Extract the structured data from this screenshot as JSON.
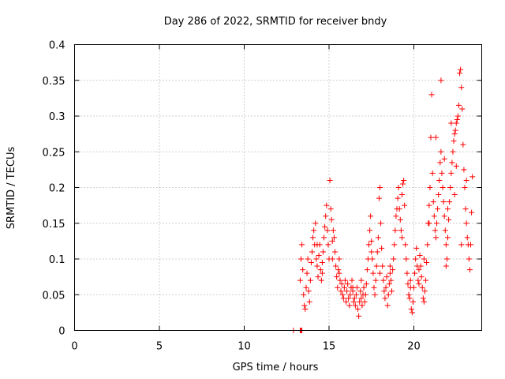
{
  "chart_data": {
    "type": "scatter",
    "title": "Day 286 of 2022, SRMTID for receiver bndy",
    "xlabel": "GPS time / hours",
    "ylabel": "SRMTID / TECUs",
    "xlim": [
      0,
      24
    ],
    "ylim": [
      0,
      0.4
    ],
    "xticks": [
      0,
      5,
      10,
      15,
      20
    ],
    "yticks": [
      0,
      0.05,
      0.1,
      0.15,
      0.2,
      0.25,
      0.3,
      0.35,
      0.4
    ],
    "xtick_labels": [
      "0",
      "5",
      "10",
      "15",
      "20"
    ],
    "ytick_labels": [
      "0",
      "0.05",
      "0.1",
      "0.15",
      "0.2",
      "0.25",
      "0.3",
      "0.35",
      "0.4"
    ],
    "grid": true,
    "marker": "+",
    "color": "#ff0000",
    "series": [
      {
        "name": "SRMTID",
        "points": [
          [
            12.9,
            0.0
          ],
          [
            13.3,
            0.0
          ],
          [
            13.35,
            0.0
          ],
          [
            13.4,
            0.0
          ],
          [
            13.3,
            0.07
          ],
          [
            13.35,
            0.1
          ],
          [
            13.4,
            0.12
          ],
          [
            13.45,
            0.085
          ],
          [
            13.5,
            0.05
          ],
          [
            13.55,
            0.035
          ],
          [
            13.6,
            0.03
          ],
          [
            13.65,
            0.06
          ],
          [
            13.7,
            0.08
          ],
          [
            13.75,
            0.1
          ],
          [
            13.8,
            0.055
          ],
          [
            13.85,
            0.04
          ],
          [
            13.9,
            0.07
          ],
          [
            13.95,
            0.095
          ],
          [
            14.0,
            0.11
          ],
          [
            14.05,
            0.13
          ],
          [
            14.1,
            0.14
          ],
          [
            14.15,
            0.12
          ],
          [
            14.2,
            0.15
          ],
          [
            14.25,
            0.1
          ],
          [
            14.3,
            0.09
          ],
          [
            14.35,
            0.075
          ],
          [
            14.4,
            0.105
          ],
          [
            14.45,
            0.12
          ],
          [
            14.5,
            0.085
          ],
          [
            14.55,
            0.07
          ],
          [
            14.6,
            0.095
          ],
          [
            14.65,
            0.11
          ],
          [
            14.7,
            0.13
          ],
          [
            14.75,
            0.145
          ],
          [
            14.8,
            0.16
          ],
          [
            14.85,
            0.175
          ],
          [
            14.9,
            0.14
          ],
          [
            14.95,
            0.12
          ],
          [
            15.0,
            0.1
          ],
          [
            15.05,
            0.21
          ],
          [
            15.1,
            0.17
          ],
          [
            15.15,
            0.155
          ],
          [
            15.2,
            0.125
          ],
          [
            15.25,
            0.14
          ],
          [
            15.3,
            0.13
          ],
          [
            15.35,
            0.11
          ],
          [
            15.4,
            0.09
          ],
          [
            15.45,
            0.075
          ],
          [
            15.5,
            0.06
          ],
          [
            15.55,
            0.085
          ],
          [
            15.6,
            0.1
          ],
          [
            15.65,
            0.07
          ],
          [
            15.7,
            0.055
          ],
          [
            15.75,
            0.065
          ],
          [
            15.8,
            0.05
          ],
          [
            15.85,
            0.045
          ],
          [
            15.9,
            0.06
          ],
          [
            15.95,
            0.07
          ],
          [
            16.0,
            0.04
          ],
          [
            16.05,
            0.055
          ],
          [
            16.1,
            0.065
          ],
          [
            16.15,
            0.045
          ],
          [
            16.2,
            0.035
          ],
          [
            16.25,
            0.05
          ],
          [
            16.3,
            0.06
          ],
          [
            16.35,
            0.07
          ],
          [
            16.4,
            0.055
          ],
          [
            16.45,
            0.04
          ],
          [
            16.5,
            0.045
          ],
          [
            16.55,
            0.035
          ],
          [
            16.6,
            0.05
          ],
          [
            16.65,
            0.06
          ],
          [
            16.7,
            0.03
          ],
          [
            16.75,
            0.02
          ],
          [
            16.8,
            0.04
          ],
          [
            16.85,
            0.055
          ],
          [
            16.9,
            0.045
          ],
          [
            16.95,
            0.035
          ],
          [
            17.0,
            0.05
          ],
          [
            17.05,
            0.06
          ],
          [
            17.1,
            0.04
          ],
          [
            17.15,
            0.05
          ],
          [
            17.2,
            0.065
          ],
          [
            17.25,
            0.085
          ],
          [
            17.3,
            0.1
          ],
          [
            17.35,
            0.12
          ],
          [
            17.4,
            0.14
          ],
          [
            17.45,
            0.16
          ],
          [
            17.5,
            0.125
          ],
          [
            17.55,
            0.1
          ],
          [
            17.6,
            0.08
          ],
          [
            17.65,
            0.06
          ],
          [
            17.7,
            0.05
          ],
          [
            17.75,
            0.07
          ],
          [
            17.8,
            0.09
          ],
          [
            17.85,
            0.11
          ],
          [
            17.9,
            0.13
          ],
          [
            17.95,
            0.185
          ],
          [
            18.0,
            0.2
          ],
          [
            18.05,
            0.15
          ],
          [
            18.1,
            0.115
          ],
          [
            18.15,
            0.09
          ],
          [
            18.2,
            0.07
          ],
          [
            18.25,
            0.055
          ],
          [
            18.3,
            0.045
          ],
          [
            18.35,
            0.06
          ],
          [
            18.4,
            0.075
          ],
          [
            18.45,
            0.035
          ],
          [
            18.5,
            0.05
          ],
          [
            18.55,
            0.065
          ],
          [
            18.6,
            0.08
          ],
          [
            18.65,
            0.07
          ],
          [
            18.7,
            0.055
          ],
          [
            18.75,
            0.085
          ],
          [
            18.8,
            0.1
          ],
          [
            18.85,
            0.12
          ],
          [
            18.9,
            0.14
          ],
          [
            18.95,
            0.16
          ],
          [
            19.0,
            0.17
          ],
          [
            19.05,
            0.185
          ],
          [
            19.1,
            0.2
          ],
          [
            19.15,
            0.17
          ],
          [
            19.2,
            0.155
          ],
          [
            19.25,
            0.14
          ],
          [
            19.3,
            0.19
          ],
          [
            19.35,
            0.205
          ],
          [
            19.4,
            0.21
          ],
          [
            19.45,
            0.175
          ],
          [
            19.5,
            0.12
          ],
          [
            19.55,
            0.1
          ],
          [
            19.6,
            0.08
          ],
          [
            19.65,
            0.065
          ],
          [
            19.7,
            0.05
          ],
          [
            19.75,
            0.045
          ],
          [
            19.8,
            0.06
          ],
          [
            19.85,
            0.03
          ],
          [
            19.9,
            0.025
          ],
          [
            19.95,
            0.04
          ],
          [
            20.0,
            0.06
          ],
          [
            20.05,
            0.08
          ],
          [
            20.1,
            0.1
          ],
          [
            20.15,
            0.115
          ],
          [
            20.2,
            0.09
          ],
          [
            20.25,
            0.07
          ],
          [
            20.3,
            0.085
          ],
          [
            20.35,
            0.105
          ],
          [
            20.4,
            0.09
          ],
          [
            20.45,
            0.075
          ],
          [
            20.5,
            0.06
          ],
          [
            20.55,
            0.045
          ],
          [
            20.6,
            0.04
          ],
          [
            20.65,
            0.055
          ],
          [
            20.7,
            0.07
          ],
          [
            20.75,
            0.095
          ],
          [
            20.8,
            0.12
          ],
          [
            20.85,
            0.15
          ],
          [
            20.9,
            0.175
          ],
          [
            20.95,
            0.2
          ],
          [
            21.0,
            0.27
          ],
          [
            21.05,
            0.33
          ],
          [
            21.1,
            0.22
          ],
          [
            21.15,
            0.18
          ],
          [
            21.2,
            0.16
          ],
          [
            21.25,
            0.14
          ],
          [
            21.3,
            0.13
          ],
          [
            21.35,
            0.15
          ],
          [
            21.4,
            0.17
          ],
          [
            21.45,
            0.19
          ],
          [
            21.5,
            0.21
          ],
          [
            21.55,
            0.235
          ],
          [
            21.6,
            0.25
          ],
          [
            21.65,
            0.22
          ],
          [
            21.7,
            0.2
          ],
          [
            21.75,
            0.18
          ],
          [
            21.8,
            0.16
          ],
          [
            21.85,
            0.14
          ],
          [
            21.9,
            0.12
          ],
          [
            21.95,
            0.1
          ],
          [
            22.0,
            0.13
          ],
          [
            22.05,
            0.155
          ],
          [
            22.1,
            0.18
          ],
          [
            22.15,
            0.2
          ],
          [
            22.2,
            0.22
          ],
          [
            22.25,
            0.235
          ],
          [
            22.3,
            0.25
          ],
          [
            22.35,
            0.265
          ],
          [
            22.4,
            0.275
          ],
          [
            22.45,
            0.28
          ],
          [
            22.5,
            0.29
          ],
          [
            22.55,
            0.295
          ],
          [
            22.6,
            0.3
          ],
          [
            22.65,
            0.315
          ],
          [
            22.7,
            0.36
          ],
          [
            22.75,
            0.365
          ],
          [
            22.8,
            0.34
          ],
          [
            22.85,
            0.31
          ],
          [
            22.9,
            0.26
          ],
          [
            22.95,
            0.225
          ],
          [
            23.0,
            0.2
          ],
          [
            23.05,
            0.17
          ],
          [
            23.1,
            0.15
          ],
          [
            23.15,
            0.13
          ],
          [
            23.2,
            0.12
          ],
          [
            23.25,
            0.1
          ],
          [
            23.3,
            0.085
          ],
          [
            23.35,
            0.12
          ],
          [
            23.4,
            0.165
          ],
          [
            23.45,
            0.215
          ],
          [
            21.6,
            0.35
          ],
          [
            22.2,
            0.29
          ],
          [
            21.3,
            0.27
          ],
          [
            20.9,
            0.15
          ],
          [
            22.0,
            0.17
          ],
          [
            23.1,
            0.21
          ],
          [
            22.5,
            0.23
          ],
          [
            22.4,
            0.19
          ],
          [
            21.8,
            0.24
          ],
          [
            20.6,
            0.1
          ],
          [
            21.9,
            0.09
          ],
          [
            22.8,
            0.12
          ],
          [
            14.3,
            0.12
          ],
          [
            14.6,
            0.08
          ],
          [
            15.2,
            0.1
          ],
          [
            15.6,
            0.08
          ],
          [
            16.4,
            0.06
          ],
          [
            16.9,
            0.07
          ],
          [
            17.5,
            0.11
          ],
          [
            18.0,
            0.08
          ],
          [
            18.6,
            0.09
          ],
          [
            19.3,
            0.13
          ],
          [
            19.8,
            0.07
          ],
          [
            20.3,
            0.065
          ]
        ]
      }
    ]
  }
}
